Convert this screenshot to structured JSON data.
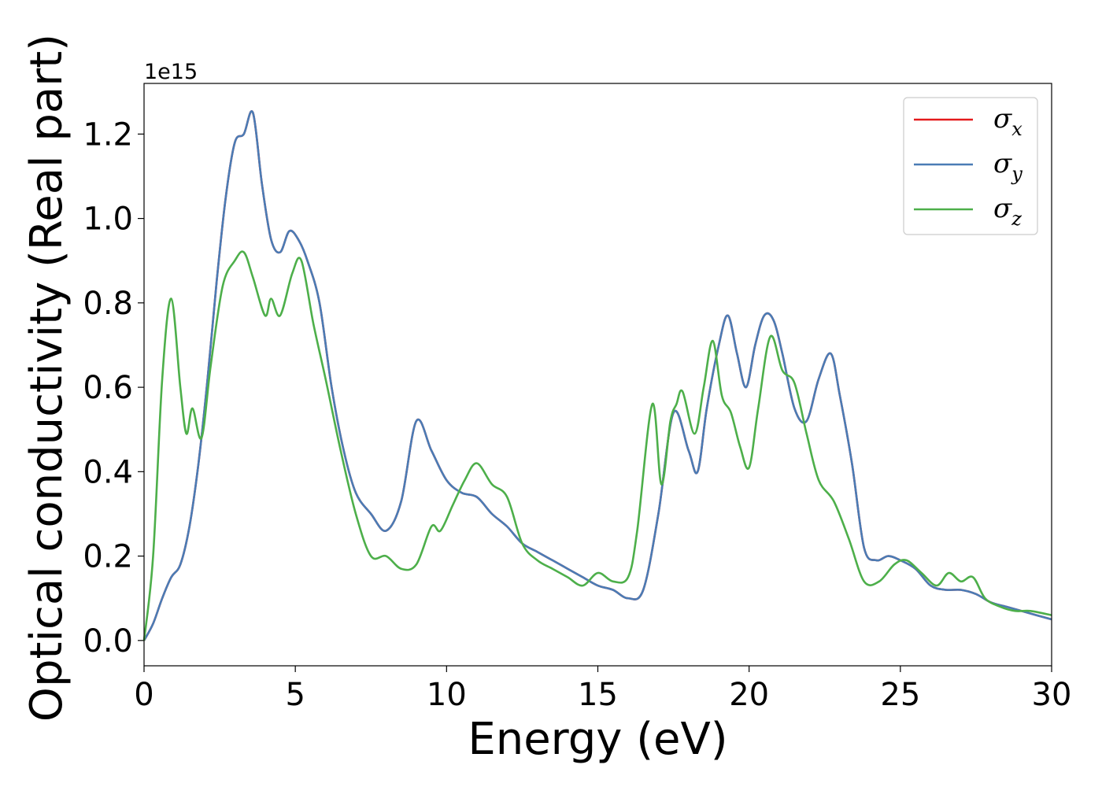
{
  "chart_data": {
    "type": "line",
    "title": "",
    "xlabel": "Energy (eV)",
    "ylabel": "Optical conductivity (Real part)",
    "y_offset_label": "1e15",
    "xlim": [
      0,
      30
    ],
    "ylim": [
      -0.06,
      1.32
    ],
    "y_scale": 1000000000000000.0,
    "grid": false,
    "legend_position": "top-right",
    "x_ticks": [
      0,
      5,
      10,
      15,
      20,
      25,
      30
    ],
    "x_tick_labels": [
      "0",
      "5",
      "10",
      "15",
      "20",
      "25",
      "30"
    ],
    "y_ticks": [
      0.0,
      0.2,
      0.4,
      0.6,
      0.8,
      1.0,
      1.2
    ],
    "y_tick_labels": [
      "0.0",
      "0.2",
      "0.4",
      "0.6",
      "0.8",
      "1.0",
      "1.2"
    ],
    "series": [
      {
        "name": "σ",
        "subscript": "x",
        "color": "#e41a1c",
        "x": [
          0,
          0.3,
          0.6,
          0.9,
          1.2,
          1.5,
          1.8,
          2.1,
          2.4,
          2.7,
          3.0,
          3.3,
          3.6,
          3.9,
          4.2,
          4.5,
          4.8,
          5.1,
          5.4,
          5.8,
          6.2,
          6.6,
          7.0,
          7.5,
          8.0,
          8.5,
          9.0,
          9.5,
          10.0,
          10.5,
          11.0,
          11.5,
          12.0,
          12.5,
          13.0,
          13.5,
          14.0,
          14.5,
          15.0,
          15.5,
          16.0,
          16.5,
          17.0,
          17.5,
          18.0,
          18.3,
          18.6,
          19.0,
          19.3,
          19.6,
          19.9,
          20.2,
          20.5,
          20.8,
          21.1,
          21.5,
          21.9,
          22.3,
          22.7,
          23.0,
          23.4,
          23.8,
          24.2,
          24.6,
          25.0,
          25.5,
          26.0,
          26.5,
          27.0,
          27.5,
          28.0,
          28.5,
          29.0,
          29.5,
          30.0
        ],
        "y": [
          0.0,
          0.04,
          0.1,
          0.15,
          0.18,
          0.27,
          0.42,
          0.62,
          0.85,
          1.05,
          1.18,
          1.2,
          1.25,
          1.08,
          0.95,
          0.92,
          0.97,
          0.95,
          0.9,
          0.8,
          0.6,
          0.45,
          0.35,
          0.3,
          0.26,
          0.33,
          0.52,
          0.45,
          0.38,
          0.35,
          0.34,
          0.3,
          0.27,
          0.23,
          0.21,
          0.19,
          0.17,
          0.15,
          0.13,
          0.12,
          0.1,
          0.12,
          0.3,
          0.54,
          0.45,
          0.4,
          0.55,
          0.7,
          0.77,
          0.68,
          0.6,
          0.7,
          0.77,
          0.76,
          0.68,
          0.55,
          0.52,
          0.62,
          0.68,
          0.58,
          0.42,
          0.22,
          0.19,
          0.2,
          0.19,
          0.17,
          0.13,
          0.12,
          0.12,
          0.11,
          0.09,
          0.08,
          0.07,
          0.06,
          0.05
        ]
      },
      {
        "name": "σ",
        "subscript": "y",
        "color": "#4a7cb5",
        "x": [
          0,
          0.3,
          0.6,
          0.9,
          1.2,
          1.5,
          1.8,
          2.1,
          2.4,
          2.7,
          3.0,
          3.3,
          3.6,
          3.9,
          4.2,
          4.5,
          4.8,
          5.1,
          5.4,
          5.8,
          6.2,
          6.6,
          7.0,
          7.5,
          8.0,
          8.5,
          9.0,
          9.5,
          10.0,
          10.5,
          11.0,
          11.5,
          12.0,
          12.5,
          13.0,
          13.5,
          14.0,
          14.5,
          15.0,
          15.5,
          16.0,
          16.5,
          17.0,
          17.5,
          18.0,
          18.3,
          18.6,
          19.0,
          19.3,
          19.6,
          19.9,
          20.2,
          20.5,
          20.8,
          21.1,
          21.5,
          21.9,
          22.3,
          22.7,
          23.0,
          23.4,
          23.8,
          24.2,
          24.6,
          25.0,
          25.5,
          26.0,
          26.5,
          27.0,
          27.5,
          28.0,
          28.5,
          29.0,
          29.5,
          30.0
        ],
        "y": [
          0.0,
          0.04,
          0.1,
          0.15,
          0.18,
          0.27,
          0.42,
          0.62,
          0.85,
          1.05,
          1.18,
          1.2,
          1.25,
          1.08,
          0.95,
          0.92,
          0.97,
          0.95,
          0.9,
          0.8,
          0.6,
          0.45,
          0.35,
          0.3,
          0.26,
          0.33,
          0.52,
          0.45,
          0.38,
          0.35,
          0.34,
          0.3,
          0.27,
          0.23,
          0.21,
          0.19,
          0.17,
          0.15,
          0.13,
          0.12,
          0.1,
          0.12,
          0.3,
          0.54,
          0.45,
          0.4,
          0.55,
          0.7,
          0.77,
          0.68,
          0.6,
          0.7,
          0.77,
          0.76,
          0.68,
          0.55,
          0.52,
          0.62,
          0.68,
          0.58,
          0.42,
          0.22,
          0.19,
          0.2,
          0.19,
          0.17,
          0.13,
          0.12,
          0.12,
          0.11,
          0.09,
          0.08,
          0.07,
          0.06,
          0.05
        ]
      },
      {
        "name": "σ",
        "subscript": "z",
        "color": "#4daf4a",
        "x": [
          0,
          0.3,
          0.6,
          0.9,
          1.2,
          1.4,
          1.6,
          1.9,
          2.2,
          2.6,
          3.0,
          3.3,
          3.6,
          4.0,
          4.2,
          4.5,
          4.9,
          5.2,
          5.6,
          6.0,
          6.5,
          7.0,
          7.5,
          8.0,
          8.5,
          9.0,
          9.5,
          9.8,
          10.2,
          10.6,
          11.0,
          11.5,
          12.0,
          12.5,
          13.0,
          13.5,
          14.0,
          14.5,
          15.0,
          15.5,
          16.0,
          16.3,
          16.8,
          17.1,
          17.4,
          17.6,
          17.8,
          18.2,
          18.5,
          18.8,
          19.1,
          19.4,
          19.7,
          20.0,
          20.3,
          20.7,
          21.1,
          21.5,
          21.9,
          22.3,
          22.8,
          23.3,
          23.8,
          24.3,
          24.8,
          25.2,
          25.7,
          26.2,
          26.6,
          27.0,
          27.4,
          27.8,
          28.3,
          28.8,
          29.3,
          30.0
        ],
        "y": [
          0.0,
          0.2,
          0.62,
          0.81,
          0.6,
          0.49,
          0.55,
          0.48,
          0.65,
          0.84,
          0.9,
          0.92,
          0.86,
          0.77,
          0.81,
          0.77,
          0.87,
          0.9,
          0.75,
          0.62,
          0.45,
          0.3,
          0.2,
          0.2,
          0.17,
          0.18,
          0.27,
          0.26,
          0.32,
          0.38,
          0.42,
          0.37,
          0.34,
          0.23,
          0.19,
          0.17,
          0.15,
          0.13,
          0.16,
          0.14,
          0.15,
          0.26,
          0.56,
          0.37,
          0.52,
          0.56,
          0.59,
          0.49,
          0.6,
          0.71,
          0.58,
          0.54,
          0.46,
          0.41,
          0.55,
          0.72,
          0.64,
          0.61,
          0.49,
          0.38,
          0.33,
          0.24,
          0.14,
          0.14,
          0.18,
          0.19,
          0.16,
          0.13,
          0.16,
          0.14,
          0.15,
          0.1,
          0.08,
          0.07,
          0.07,
          0.06
        ]
      }
    ]
  }
}
